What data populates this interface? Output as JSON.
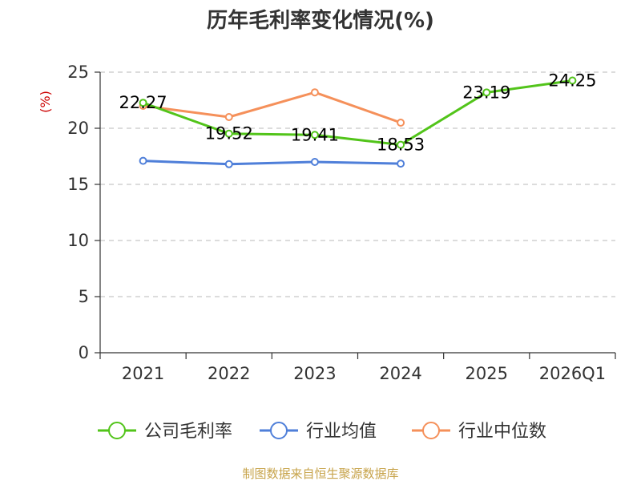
{
  "chart_data": {
    "type": "line",
    "title": "历年毛利率变化情况(%)",
    "ylabel": "(%)",
    "categories": [
      "2021",
      "2022",
      "2023",
      "2024",
      "2025",
      "2026Q1"
    ],
    "ylim": [
      0,
      25
    ],
    "yticks": [
      0,
      5,
      10,
      15,
      20,
      25
    ],
    "grid": true,
    "legend_position": "bottom",
    "series": [
      {
        "name": "公司毛利率",
        "color": "#52c41a",
        "values": [
          22.27,
          19.52,
          19.41,
          18.53,
          23.19,
          24.25
        ],
        "labels": [
          "22.27",
          "19.52",
          "19.41",
          "18.53",
          "23.19",
          "24.25"
        ]
      },
      {
        "name": "行业均值",
        "color": "#4f7fd9",
        "values": [
          17.1,
          16.8,
          17.0,
          16.85,
          null,
          null
        ]
      },
      {
        "name": "行业中位数",
        "color": "#f5905a",
        "values": [
          22.0,
          21.0,
          23.2,
          20.5,
          null,
          null
        ]
      }
    ]
  },
  "source": "制图数据来自恒生聚源数据库"
}
